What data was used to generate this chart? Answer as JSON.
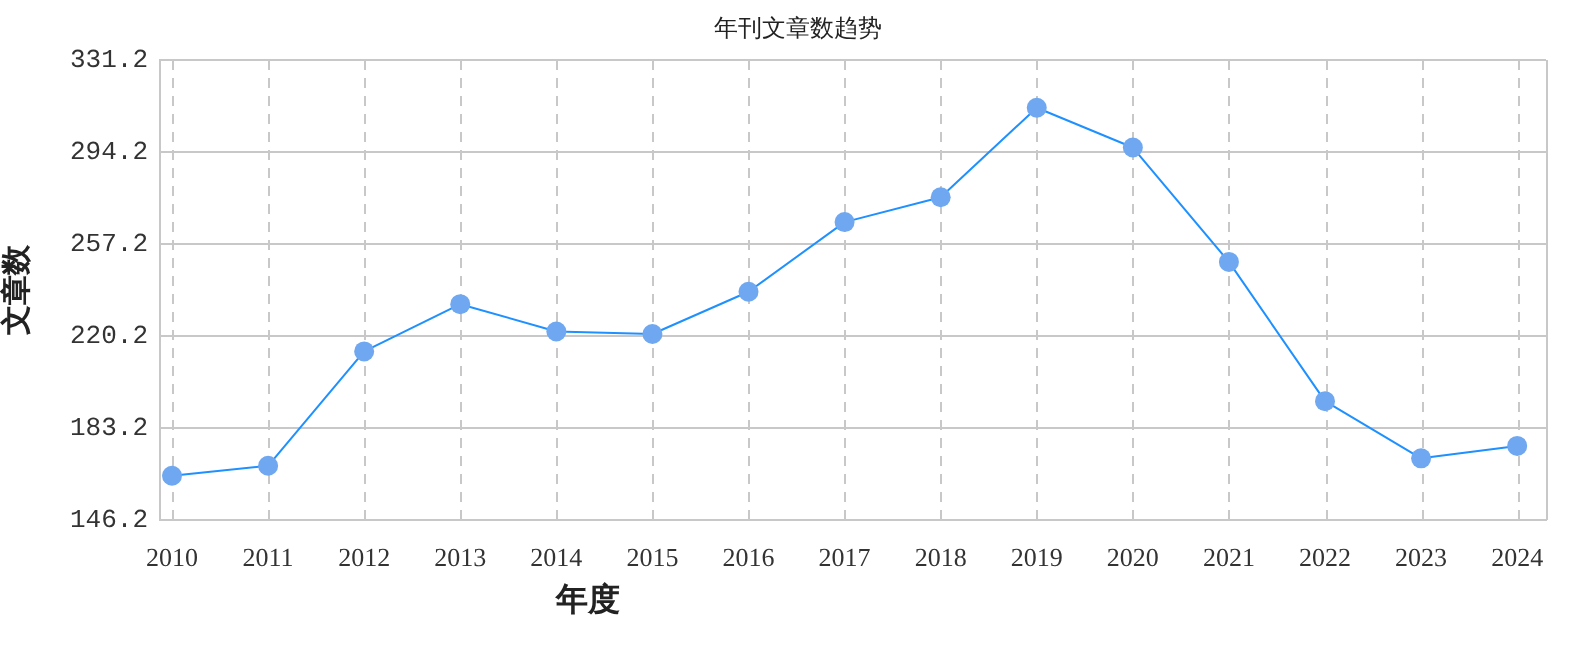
{
  "chart_data": {
    "type": "line",
    "title": "年刊文章数趋势",
    "xlabel": "年度",
    "ylabel": "文章数",
    "x": [
      2010,
      2011,
      2012,
      2013,
      2014,
      2015,
      2016,
      2017,
      2018,
      2019,
      2020,
      2021,
      2022,
      2023,
      2024
    ],
    "series": [
      {
        "color": "#1e90ff",
        "values": [
          164,
          168,
          214,
          233,
          222,
          221,
          238,
          266,
          276,
          312,
          296,
          250,
          194,
          171,
          176
        ]
      }
    ],
    "xlim": [
      2009.875,
      2024.3
    ],
    "xticks": [
      2010,
      2011,
      2012,
      2013,
      2014,
      2015,
      2016,
      2017,
      2018,
      2019,
      2020,
      2021,
      2022,
      2023,
      2024
    ],
    "ylim": [
      146.2,
      331.2
    ],
    "yticks": [
      146.2,
      183.2,
      220.2,
      257.2,
      294.2,
      331.2
    ],
    "grid": true,
    "legend": false,
    "marker": "circle",
    "line_style": "solid"
  }
}
